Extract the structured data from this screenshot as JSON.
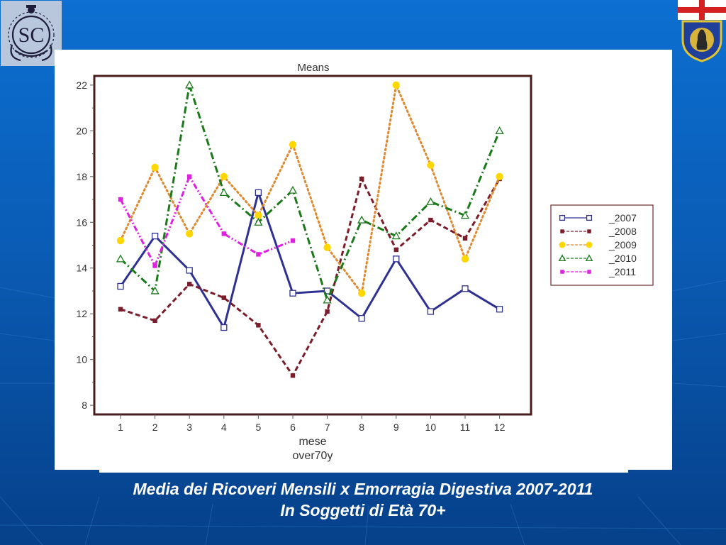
{
  "slide": {
    "caption_line1": "Media dei Ricoveri Mensili x Emorragia Digestiva 2007-2011",
    "caption_line2": "In Soggetti di Età 70+",
    "logo_left_text": "SC",
    "logo_left_icon": "sc-emblem-icon",
    "logo_right_icon": "genova-crest-icon"
  },
  "chart_data": {
    "type": "line",
    "title": "Means",
    "xlabel": "mese",
    "xlabel2": "over70y",
    "x": [
      1,
      2,
      3,
      4,
      5,
      6,
      7,
      8,
      9,
      10,
      11,
      12
    ],
    "ylim": [
      7.6,
      22.4
    ],
    "yticks": [
      8,
      10,
      12,
      14,
      16,
      18,
      20,
      22
    ],
    "grid": false,
    "legend_position": "right",
    "series": [
      {
        "name": "_2007",
        "color": "#2e3192",
        "dash": "solid",
        "marker": "square-open",
        "values": [
          13.2,
          15.4,
          13.9,
          11.4,
          17.3,
          12.9,
          13.0,
          11.8,
          14.4,
          12.1,
          13.1,
          12.2
        ]
      },
      {
        "name": "_2008",
        "color": "#7b1c2a",
        "dash": "dash",
        "marker": "square-filled",
        "values": [
          12.2,
          11.7,
          13.3,
          12.7,
          11.5,
          9.3,
          12.1,
          17.9,
          14.8,
          16.1,
          15.3,
          17.9
        ]
      },
      {
        "name": "_2009",
        "color": "#e08a30",
        "markerColor": "#ffd700",
        "dash": "dot",
        "marker": "circle-filled",
        "values": [
          15.2,
          18.4,
          15.5,
          18.0,
          16.3,
          19.4,
          14.9,
          12.9,
          22.0,
          18.5,
          14.4,
          18.0
        ]
      },
      {
        "name": "_2010",
        "color": "#1a7a1a",
        "dash": "dashdot",
        "marker": "triangle-open",
        "values": [
          14.4,
          13.0,
          22.0,
          17.3,
          16.0,
          17.4,
          12.6,
          16.1,
          15.4,
          16.9,
          16.3,
          20.0
        ]
      },
      {
        "name": "_2011",
        "color": "#e020e0",
        "dash": "dashdotdot",
        "marker": "square-filled",
        "values": [
          17.0,
          14.1,
          18.0,
          15.5,
          14.6,
          15.2,
          null,
          null,
          null,
          null,
          null,
          null
        ]
      }
    ]
  }
}
